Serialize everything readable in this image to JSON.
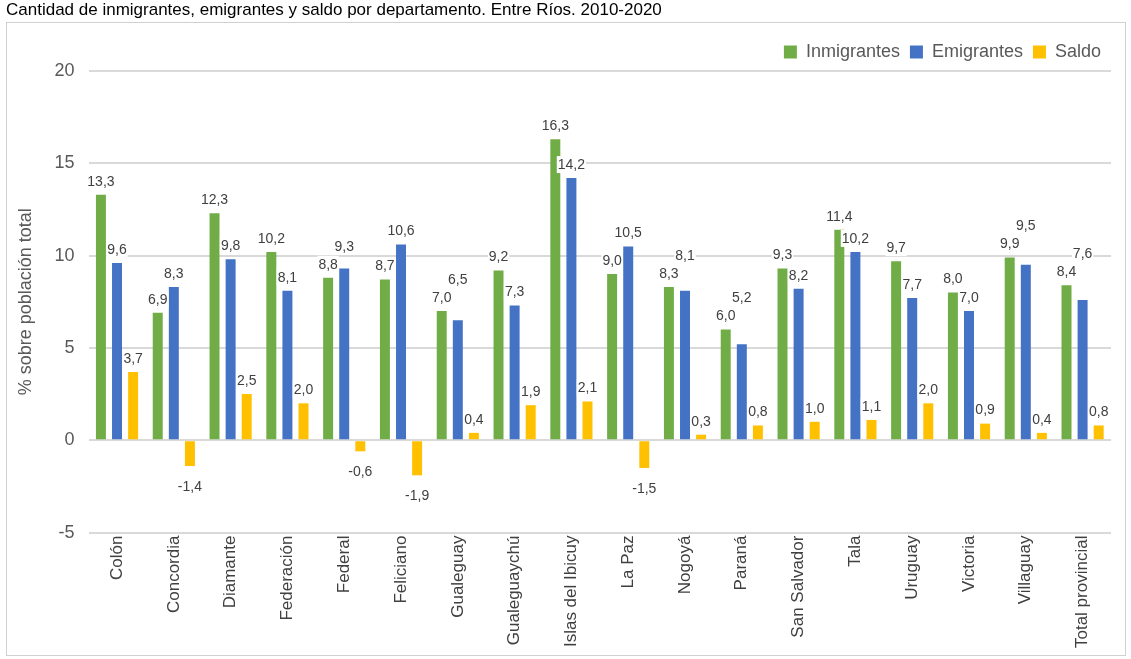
{
  "chart_data": {
    "type": "bar",
    "title": "Cantidad de inmigrantes, emigrantes y saldo por departamento. Entre Ríos. 2010-2020",
    "ylabel": "% sobre población total",
    "categories": [
      "Colón",
      "Concordia",
      "Diamante",
      "Federación",
      "Federal",
      "Feliciano",
      "Gualeguay",
      "Gualeguaychú",
      "Islas del Ibicuy",
      "La Paz",
      "Nogoyá",
      "Paraná",
      "San Salvador",
      "Tala",
      "Uruguay",
      "Victoria",
      "Villaguay",
      "Total provincial"
    ],
    "series": [
      {
        "name": "Inmigrantes",
        "color": "#70ad47",
        "values": [
          13.3,
          6.9,
          12.3,
          10.2,
          8.8,
          8.7,
          7.0,
          9.2,
          16.3,
          9.0,
          8.3,
          6.0,
          9.3,
          11.4,
          9.7,
          8.0,
          9.9,
          8.4
        ],
        "value_labels": [
          "13,3",
          "6,9",
          "12,3",
          "10,2",
          "8,8",
          "8,7",
          "7,0",
          "9,2",
          "16,3",
          "9,0",
          "8,3",
          "6,0",
          "9,3",
          "11,4",
          "9,7",
          "8,0",
          "9,9",
          "8,4"
        ]
      },
      {
        "name": "Emigrantes",
        "color": "#4472c4",
        "values": [
          9.6,
          8.3,
          9.8,
          8.1,
          9.3,
          10.6,
          6.5,
          7.3,
          14.2,
          10.5,
          8.1,
          5.2,
          8.2,
          10.2,
          7.7,
          7.0,
          9.5,
          7.6
        ],
        "value_labels": [
          "9,6",
          "8,3",
          "9,8",
          "8,1",
          "9,3",
          "10,6",
          "6,5",
          "7,3",
          "14,2",
          "10,5",
          "8,1",
          "5,2",
          "8,2",
          "10,2",
          "7,7",
          "7,0",
          "9,5",
          "7,6"
        ]
      },
      {
        "name": "Saldo",
        "color": "#ffc000",
        "values": [
          3.7,
          -1.4,
          2.5,
          2.0,
          -0.6,
          -1.9,
          0.4,
          1.9,
          2.1,
          -1.5,
          0.3,
          0.8,
          1.0,
          1.1,
          2.0,
          0.9,
          0.4,
          0.8
        ],
        "value_labels": [
          "3,7",
          "-1,4",
          "2,5",
          "2,0",
          "-0,6",
          "-1,9",
          "0,4",
          "1,9",
          "2,1",
          "-1,5",
          "0,3",
          "0,8",
          "1,0",
          "1,1",
          "2,0",
          "0,9",
          "0,4",
          "0,8"
        ]
      }
    ],
    "ylim": [
      -5,
      20
    ],
    "yticks": [
      -5,
      0,
      5,
      10,
      15,
      20
    ],
    "grid": "y",
    "legend": "top right"
  }
}
